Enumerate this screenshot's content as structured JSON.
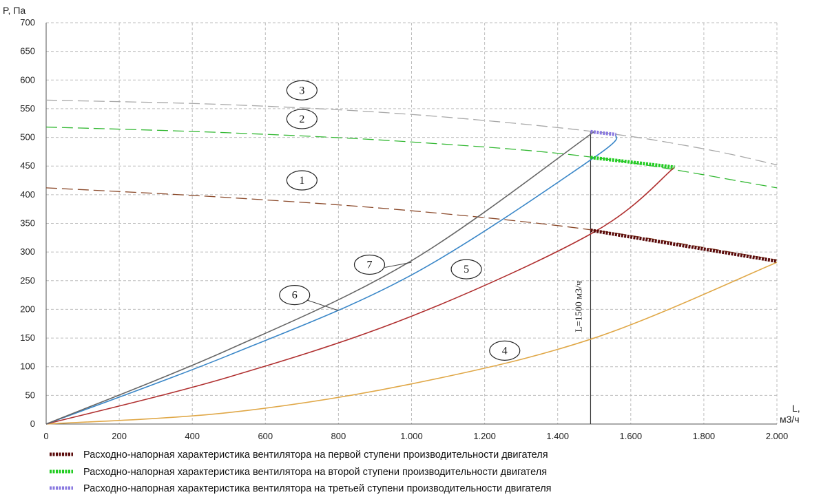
{
  "chart_data": {
    "type": "line",
    "ylabel": "P, Па",
    "xlabel_line1": "L,",
    "xlabel_line2": "м3/ч",
    "xlim": [
      0,
      2000
    ],
    "ylim": [
      0,
      700
    ],
    "grid": true,
    "x_ticks": [
      {
        "value": 0,
        "label": "0"
      },
      {
        "value": 200,
        "label": "200"
      },
      {
        "value": 400,
        "label": "400"
      },
      {
        "value": 600,
        "label": "600"
      },
      {
        "value": 800,
        "label": "800"
      },
      {
        "value": 1000,
        "label": "1.000"
      },
      {
        "value": 1200,
        "label": "1.200"
      },
      {
        "value": 1400,
        "label": "1.400"
      },
      {
        "value": 1600,
        "label": "1.600"
      },
      {
        "value": 1800,
        "label": "1.800"
      },
      {
        "value": 2000,
        "label": "2.000"
      }
    ],
    "y_ticks": [
      0,
      50,
      100,
      150,
      200,
      250,
      300,
      350,
      400,
      450,
      500,
      550,
      600,
      650,
      700
    ],
    "vertical_line": {
      "x": 1490,
      "label": "L=1500 м3/ч"
    },
    "colors": {
      "curve1": "#8b4a2b",
      "curve2": "#33b833",
      "curve3": "#a8a8a8",
      "curve4": "#e0a848",
      "curve5": "#b03030",
      "curve6": "#3a87c8",
      "curve7": "#666666",
      "stage1": "#5a0a0a",
      "stage2": "#22cc22",
      "stage3": "#8a7ae0",
      "grid": "#bdbdbd",
      "vline": "#333333"
    },
    "series": [
      {
        "id": "1",
        "label_x": 700,
        "label_y": 425,
        "style": "dashed",
        "x": [
          0,
          500,
          1000,
          1500,
          2000
        ],
        "y": [
          412,
          395,
          372,
          338,
          286
        ]
      },
      {
        "id": "2",
        "label_x": 700,
        "label_y": 532,
        "style": "dashed",
        "x": [
          0,
          500,
          1000,
          1500,
          2000
        ],
        "y": [
          518,
          508,
          492,
          465,
          412
        ]
      },
      {
        "id": "3",
        "label_x": 700,
        "label_y": 582,
        "style": "dashed",
        "x": [
          0,
          500,
          1000,
          1500,
          1800,
          2000
        ],
        "y": [
          565,
          557,
          540,
          510,
          480,
          452
        ]
      },
      {
        "id": "4",
        "label_x": 1255,
        "label_y": 128,
        "style": "solid",
        "x": [
          0,
          500,
          1000,
          1500,
          2000
        ],
        "y": [
          0,
          20,
          70,
          150,
          282
        ]
      },
      {
        "id": "5",
        "label_x": 1150,
        "label_y": 270,
        "style": "solid",
        "x": [
          0,
          500,
          1000,
          1500,
          1720
        ],
        "y": [
          0,
          82,
          188,
          335,
          448
        ]
      },
      {
        "id": "6",
        "label_x": 680,
        "label_y": 225,
        "style": "solid",
        "x": [
          0,
          500,
          1000,
          1500,
          1560
        ],
        "y": [
          0,
          120,
          260,
          465,
          505
        ]
      },
      {
        "id": "7",
        "label_x": 885,
        "label_y": 278,
        "style": "solid",
        "x": [
          0,
          500,
          1000,
          1500
        ],
        "y": [
          0,
          130,
          285,
          510
        ]
      }
    ],
    "stage_markers": [
      {
        "x": [
          1490,
          2000
        ],
        "y": [
          338,
          284
        ]
      },
      {
        "x": [
          1490,
          1720
        ],
        "y": [
          465,
          448
        ]
      },
      {
        "x": [
          1490,
          1560
        ],
        "y": [
          510,
          505
        ]
      }
    ],
    "legend": [
      {
        "text": "Расходно-напорная характеристика вентилятора на первой ступени производительности двигателя",
        "color": "#5a0a0a"
      },
      {
        "text": "Расходно-напорная характеристика вентилятора на второй ступени производительности двигателя",
        "color": "#22cc22"
      },
      {
        "text": "Расходно-напорная характеристика вентилятора на третьей ступени производительности двигателя",
        "color": "#8a7ae0"
      }
    ]
  }
}
